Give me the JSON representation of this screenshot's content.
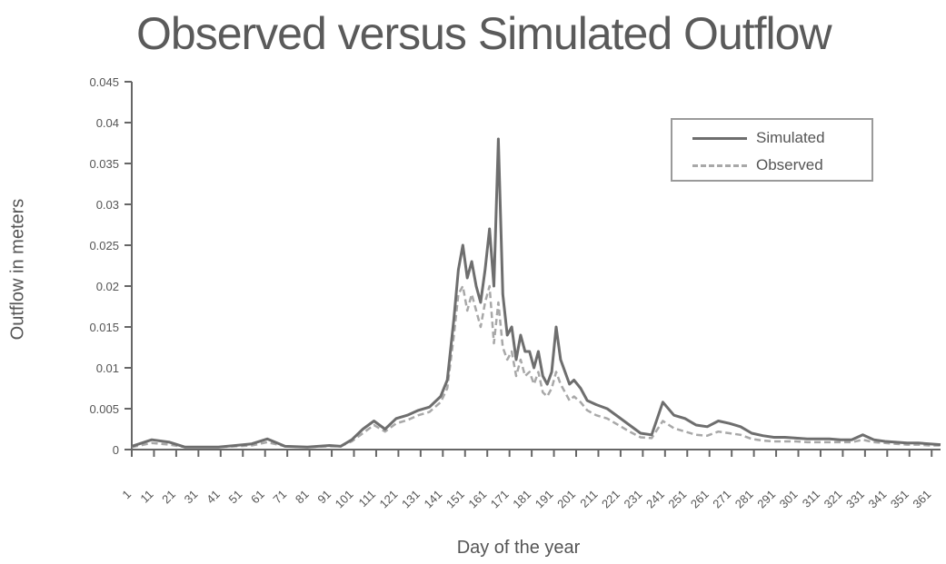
{
  "chart_data": {
    "type": "line",
    "title": "Observed versus Simulated Outflow",
    "xlabel": "Day of the year",
    "ylabel": "Outflow in meters",
    "ylim": [
      0,
      0.045
    ],
    "yticks": [
      "0",
      "0.005",
      "0.01",
      "0.015",
      "0.02",
      "0.025",
      "0.03",
      "0.035",
      "0.04",
      "0.045"
    ],
    "xlim": [
      1,
      365
    ],
    "xticks": [
      1,
      11,
      21,
      31,
      41,
      51,
      61,
      71,
      81,
      91,
      101,
      111,
      121,
      131,
      141,
      151,
      161,
      171,
      181,
      191,
      201,
      211,
      221,
      231,
      241,
      251,
      261,
      271,
      281,
      291,
      301,
      311,
      321,
      331,
      341,
      351,
      361
    ],
    "grid": false,
    "legend_position": "top-right",
    "series": [
      {
        "name": "Simulated",
        "color": "#6e6e6e",
        "x": [
          1,
          10,
          18,
          25,
          40,
          55,
          62,
          70,
          80,
          90,
          95,
          100,
          105,
          110,
          115,
          120,
          125,
          130,
          135,
          140,
          143,
          146,
          148,
          150,
          152,
          154,
          156,
          158,
          160,
          162,
          164,
          166,
          168,
          170,
          172,
          174,
          176,
          178,
          180,
          182,
          184,
          186,
          188,
          190,
          192,
          194,
          196,
          198,
          200,
          203,
          206,
          210,
          215,
          220,
          225,
          230,
          235,
          240,
          245,
          250,
          255,
          260,
          265,
          270,
          275,
          280,
          285,
          290,
          295,
          300,
          305,
          310,
          315,
          320,
          325,
          330,
          335,
          340,
          345,
          350,
          355,
          360,
          365
        ],
        "values": [
          0.0004,
          0.0012,
          0.0009,
          0.0003,
          0.0003,
          0.0007,
          0.0013,
          0.0004,
          0.0003,
          0.0005,
          0.0004,
          0.0012,
          0.0025,
          0.0035,
          0.0025,
          0.0038,
          0.0042,
          0.0048,
          0.0052,
          0.0065,
          0.0085,
          0.016,
          0.022,
          0.025,
          0.021,
          0.023,
          0.02,
          0.018,
          0.022,
          0.027,
          0.02,
          0.038,
          0.019,
          0.014,
          0.015,
          0.011,
          0.014,
          0.012,
          0.012,
          0.01,
          0.012,
          0.009,
          0.008,
          0.0095,
          0.015,
          0.011,
          0.0095,
          0.008,
          0.0085,
          0.0075,
          0.006,
          0.0055,
          0.005,
          0.004,
          0.003,
          0.002,
          0.0018,
          0.0058,
          0.0042,
          0.0038,
          0.003,
          0.0028,
          0.0035,
          0.0032,
          0.0028,
          0.002,
          0.0017,
          0.0015,
          0.0015,
          0.0014,
          0.0013,
          0.0013,
          0.0013,
          0.0012,
          0.0012,
          0.0018,
          0.0012,
          0.001,
          0.0009,
          0.0008,
          0.0008,
          0.0007,
          0.0006
        ]
      },
      {
        "name": "Observed",
        "color": "#a8a8a8",
        "x": [
          1,
          10,
          18,
          25,
          40,
          55,
          62,
          70,
          80,
          90,
          95,
          100,
          105,
          110,
          115,
          120,
          125,
          130,
          135,
          140,
          143,
          146,
          148,
          150,
          152,
          154,
          156,
          158,
          160,
          162,
          164,
          166,
          168,
          170,
          172,
          174,
          176,
          178,
          180,
          182,
          184,
          186,
          188,
          190,
          192,
          194,
          196,
          198,
          200,
          203,
          206,
          210,
          215,
          220,
          225,
          230,
          235,
          240,
          245,
          250,
          255,
          260,
          265,
          270,
          275,
          280,
          285,
          290,
          295,
          300,
          305,
          310,
          315,
          320,
          325,
          330,
          335,
          340,
          345,
          350,
          355,
          360,
          365
        ],
        "values": [
          0.0003,
          0.0008,
          0.0006,
          0.0003,
          0.0003,
          0.0005,
          0.0009,
          0.0004,
          0.0003,
          0.0004,
          0.0004,
          0.001,
          0.002,
          0.003,
          0.0022,
          0.0032,
          0.0036,
          0.0042,
          0.0046,
          0.0058,
          0.0075,
          0.014,
          0.019,
          0.02,
          0.017,
          0.019,
          0.017,
          0.015,
          0.018,
          0.02,
          0.013,
          0.018,
          0.0125,
          0.011,
          0.012,
          0.009,
          0.011,
          0.009,
          0.0095,
          0.008,
          0.0095,
          0.007,
          0.0065,
          0.0075,
          0.0095,
          0.008,
          0.007,
          0.006,
          0.0065,
          0.0058,
          0.0048,
          0.0042,
          0.0038,
          0.003,
          0.0022,
          0.0015,
          0.0014,
          0.0035,
          0.0026,
          0.0022,
          0.0018,
          0.0017,
          0.0022,
          0.002,
          0.0018,
          0.0013,
          0.0011,
          0.001,
          0.001,
          0.001,
          0.0009,
          0.0009,
          0.0009,
          0.0009,
          0.0009,
          0.0012,
          0.0009,
          0.0008,
          0.0007,
          0.0006,
          0.0006,
          0.0005,
          0.0005
        ]
      }
    ]
  }
}
